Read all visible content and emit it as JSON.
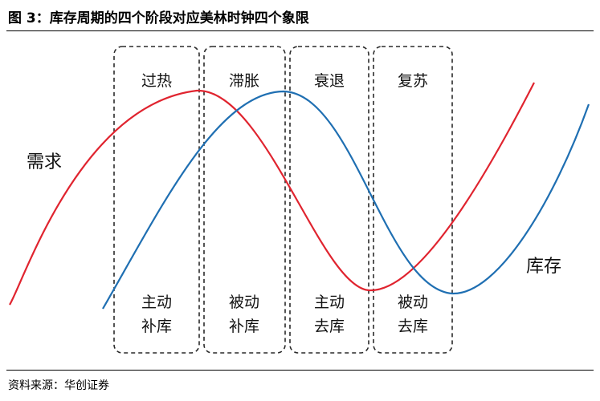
{
  "figure": {
    "title": "图 3：库存周期的四个阶段对应美林时钟四个象限",
    "source": "资料来源：华创证券"
  },
  "curves": {
    "demand": {
      "label": "需求",
      "color": "#e0242f"
    },
    "inventory": {
      "label": "库存",
      "color": "#1f6fb2"
    }
  },
  "phases": [
    {
      "name": "过热",
      "line1": "主动",
      "line2": "补库"
    },
    {
      "name": "滞胀",
      "line1": "被动",
      "line2": "补库"
    },
    {
      "name": "衰退",
      "line1": "主动",
      "line2": "去库"
    },
    {
      "name": "复苏",
      "line1": "被动",
      "line2": "去库"
    }
  ]
}
